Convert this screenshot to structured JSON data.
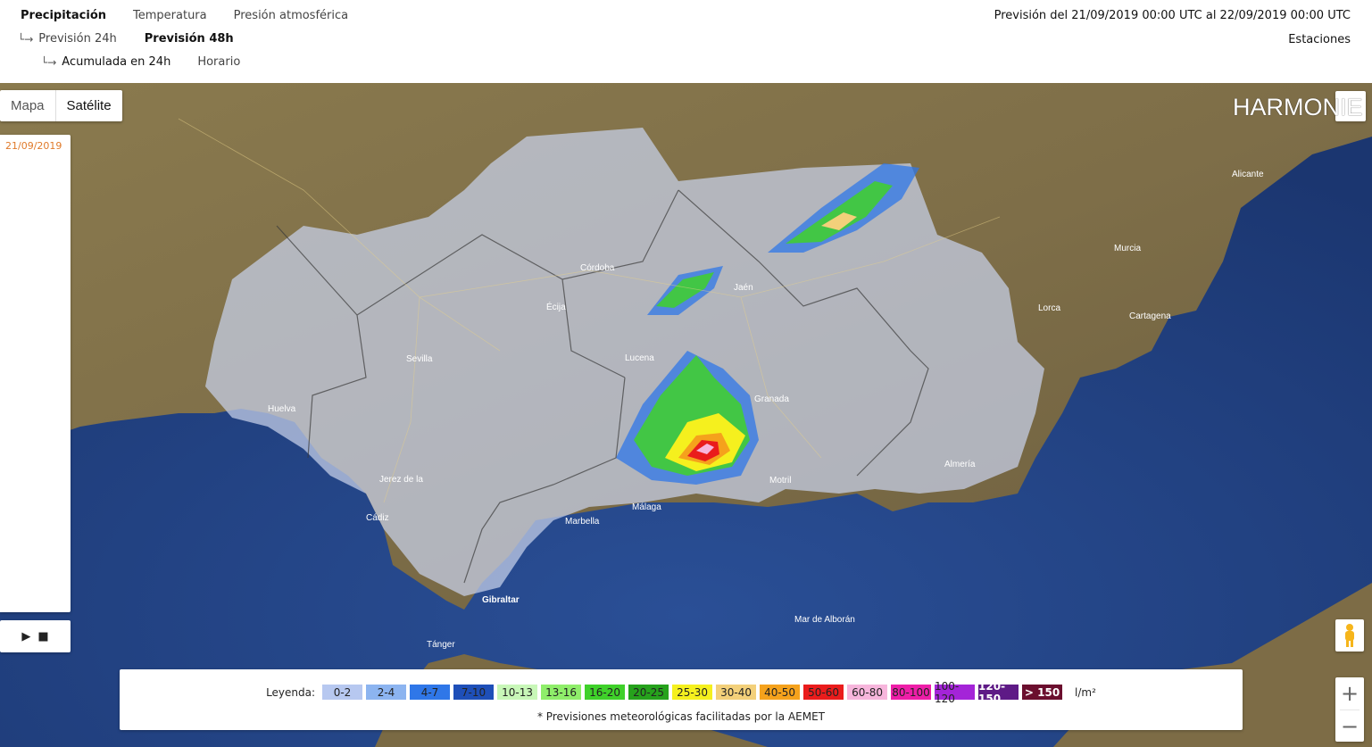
{
  "tabs": {
    "precip": "Precipitación",
    "temp": "Temperatura",
    "press": "Presión atmosférica"
  },
  "sub1": {
    "prev24": "Previsión 24h",
    "prev48": "Previsión 48h"
  },
  "sub2": {
    "acum": "Acumulada en 24h",
    "horario": "Horario"
  },
  "forecast_range": "Previsión del 21/09/2019 00:00 UTC al 22/09/2019 00:00 UTC",
  "stations": "Estaciones",
  "maptype": {
    "mapa": "Mapa",
    "satelite": "Satélite"
  },
  "date": "21/09/2019",
  "player": {
    "play": "▶",
    "stop": "■"
  },
  "model": "HARMONIE",
  "legend": {
    "label": "Leyenda:",
    "unit": "l/m²",
    "note": "* Previsiones meteorológicas facilitadas por la AEMET",
    "items": [
      {
        "text": "0-2",
        "color": "#b7c8f0",
        "bold": false
      },
      {
        "text": "2-4",
        "color": "#8cb4f0",
        "bold": false
      },
      {
        "text": "4-7",
        "color": "#2f77e8",
        "bold": false
      },
      {
        "text": "7-10",
        "color": "#1e4fb8",
        "bold": false
      },
      {
        "text": "10-13",
        "color": "#c8f7b8",
        "bold": false
      },
      {
        "text": "13-16",
        "color": "#8fee6a",
        "bold": false
      },
      {
        "text": "16-20",
        "color": "#3fd12a",
        "bold": false
      },
      {
        "text": "20-25",
        "color": "#26a21c",
        "bold": false
      },
      {
        "text": "25-30",
        "color": "#f5f01e",
        "bold": false
      },
      {
        "text": "30-40",
        "color": "#f3d07a",
        "bold": false
      },
      {
        "text": "40-50",
        "color": "#f5a21c",
        "bold": false
      },
      {
        "text": "50-60",
        "color": "#ea1c1c",
        "bold": false
      },
      {
        "text": "60-80",
        "color": "#f7b6dc",
        "bold": false
      },
      {
        "text": "80-100",
        "color": "#ee1ea8",
        "bold": false
      },
      {
        "text": "100-120",
        "color": "#a424d8",
        "bold": false
      },
      {
        "text": "120-150",
        "color": "#5e1a86",
        "bold": true
      },
      {
        "text": "> 150",
        "color": "#6b0f2e",
        "bold": true
      }
    ]
  },
  "places": [
    "Sevilla",
    "Córdoba",
    "Jaén",
    "Granada",
    "Málaga",
    "Almería",
    "Huelva",
    "Cádiz",
    "Murcia",
    "Gibraltar",
    "Tánger",
    "Cartagena",
    "Motril",
    "Marbella",
    "Lucena",
    "Écija",
    "Alicante",
    "Jerez de la Frontera",
    "Lorca",
    "Mar de Alborán"
  ]
}
